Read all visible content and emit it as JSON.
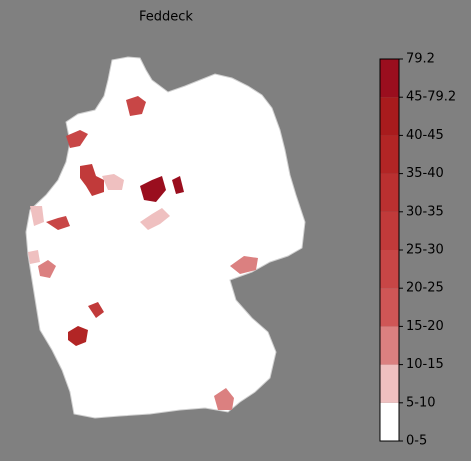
{
  "title": "Feddeck",
  "colorbar": {
    "labels": [
      "0-5",
      "5-10",
      "10-15",
      "15-20",
      "20-25",
      "25-30",
      "30-35",
      "35-40",
      "40-45",
      "45-79.2",
      "79.2"
    ],
    "colors": [
      "#ffffff",
      "#efc0c0",
      "#db8080",
      "#cf5656",
      "#c84646",
      "#c13a3a",
      "#ba3030",
      "#b22525",
      "#a81b1d",
      "#9a0e1e"
    ]
  }
}
